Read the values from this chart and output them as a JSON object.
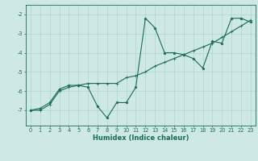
{
  "xlabel": "Humidex (Indice chaleur)",
  "ylabel": "",
  "bg_color": "#cde8e5",
  "grid_color": "#b0d4d0",
  "line_color": "#1a6b5a",
  "x_data": [
    0,
    1,
    2,
    3,
    4,
    5,
    6,
    7,
    8,
    9,
    10,
    11,
    12,
    13,
    14,
    15,
    16,
    17,
    18,
    19,
    20,
    21,
    22,
    23
  ],
  "line1_y": [
    -7.0,
    -6.9,
    -6.6,
    -5.9,
    -5.7,
    -5.7,
    -5.8,
    -6.8,
    -7.4,
    -6.6,
    -6.6,
    -5.8,
    -2.2,
    -2.7,
    -4.0,
    -4.0,
    -4.1,
    -4.3,
    -4.8,
    -3.4,
    -3.5,
    -2.2,
    -2.2,
    -2.4
  ],
  "line2_y": [
    -7.0,
    -7.0,
    -6.7,
    -6.0,
    -5.8,
    -5.7,
    -5.6,
    -5.6,
    -5.6,
    -5.6,
    -5.3,
    -5.2,
    -5.0,
    -4.7,
    -4.5,
    -4.3,
    -4.1,
    -3.9,
    -3.7,
    -3.5,
    -3.2,
    -2.9,
    -2.6,
    -2.3
  ],
  "xlim": [
    -0.5,
    23.5
  ],
  "ylim": [
    -7.8,
    -1.5
  ],
  "yticks": [
    -7,
    -6,
    -5,
    -4,
    -3,
    -2
  ],
  "xticks": [
    0,
    1,
    2,
    3,
    4,
    5,
    6,
    7,
    8,
    9,
    10,
    11,
    12,
    13,
    14,
    15,
    16,
    17,
    18,
    19,
    20,
    21,
    22,
    23
  ],
  "label_fontsize": 5.5,
  "tick_fontsize": 4.8,
  "xlabel_fontsize": 6.0
}
